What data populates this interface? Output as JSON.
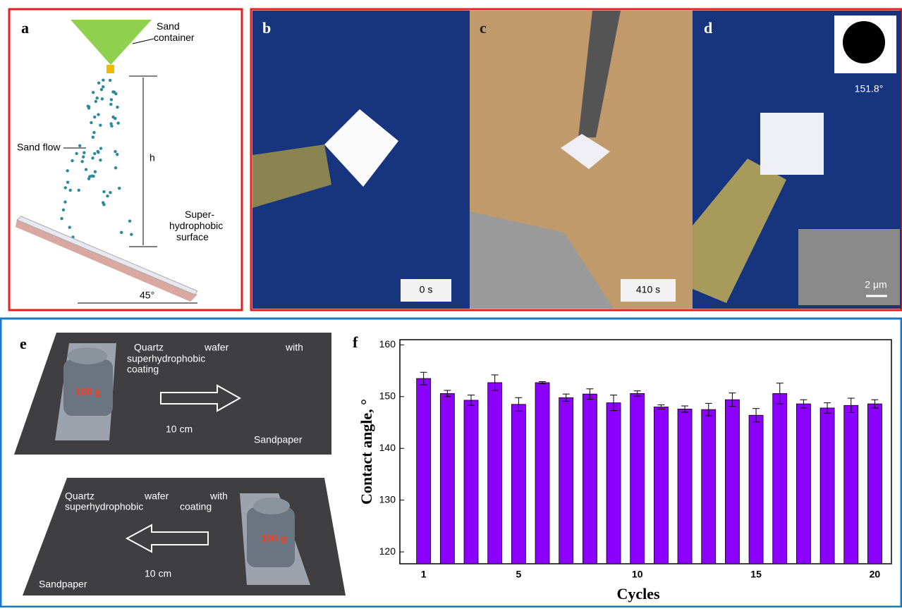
{
  "panels": {
    "a": {
      "label": "a",
      "container": [
        "Sand",
        "container"
      ],
      "flow": "Sand flow",
      "height": "h",
      "surface": [
        "Super-",
        "hydrophobic",
        "surface"
      ],
      "angle": "45°"
    },
    "b": {
      "label": "b",
      "time": "0 s"
    },
    "c": {
      "label": "c",
      "time": "410 s"
    },
    "d": {
      "label": "d",
      "contact_angle": "151.8°",
      "scale": "2 μm"
    },
    "e": {
      "label": "e",
      "top": {
        "note": [
          "Quartz",
          "wafer",
          "with",
          "superhydrophobic",
          "coating"
        ],
        "weight": "100 g",
        "distance": "10 cm",
        "surface": "Sandpaper"
      },
      "bottom": {
        "note": [
          "Quartz",
          "wafer",
          "with",
          "superhydrophobic",
          "coating"
        ],
        "weight": "100 g",
        "distance": "10 cm",
        "surface": "Sandpaper"
      }
    }
  },
  "chart_data": {
    "type": "bar",
    "title": "f",
    "x_label": "Cycles",
    "y_label": "Contact angle, °",
    "x": [
      1,
      2,
      3,
      4,
      5,
      6,
      7,
      8,
      9,
      10,
      11,
      12,
      13,
      14,
      15,
      16,
      17,
      18,
      19,
      20
    ],
    "xlim": [
      0,
      20.7
    ],
    "xticks": [
      1,
      5,
      10,
      15,
      20
    ],
    "ylim": [
      117.7,
      161
    ],
    "yticks": [
      120,
      130,
      140,
      150,
      160
    ],
    "series": [
      {
        "color": "#8b00ff",
        "values": [
          153.5,
          150.6,
          149.3,
          152.7,
          148.5,
          152.7,
          149.8,
          150.5,
          148.8,
          150.6,
          148.0,
          147.6,
          147.5,
          149.4,
          146.4,
          150.6,
          148.6,
          147.8,
          148.3,
          148.6
        ],
        "errors": [
          1.2,
          0.6,
          1.0,
          1.5,
          1.3,
          0.2,
          0.7,
          1.0,
          1.5,
          0.5,
          0.4,
          0.6,
          1.2,
          1.3,
          1.3,
          2.0,
          0.8,
          1.0,
          1.4,
          0.8
        ]
      }
    ]
  }
}
